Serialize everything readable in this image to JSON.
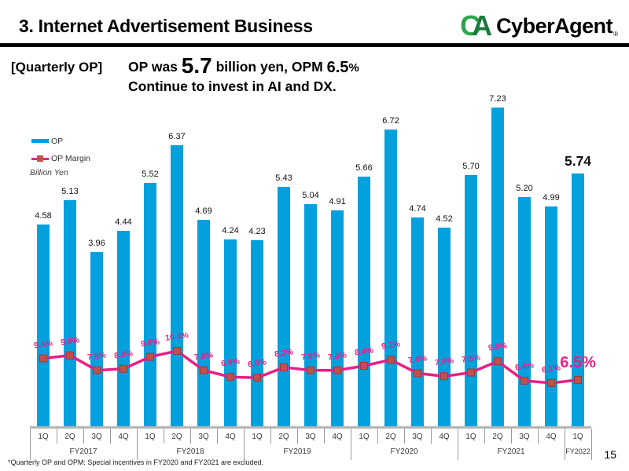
{
  "header": {
    "title": "3. Internet Advertisement Business",
    "logo": {
      "mark_c": "C",
      "mark_a": "A",
      "wordmark": "CyberAgent",
      "reg": "®",
      "green_light": "#2FA44E",
      "green_dark": "#1B7A3B"
    }
  },
  "subtitle": {
    "bracket": "[Quarterly OP]",
    "line1_pre": "OP was ",
    "line1_big": "5.7",
    "line1_mid": " billion yen, OPM ",
    "line1_opm": "6.5",
    "line1_pct": "%",
    "line2": "Continue to invest in AI and DX."
  },
  "chart": {
    "legend": {
      "op": "OP",
      "op_margin": "OP Margin"
    },
    "unit_label": "Billion Yen",
    "colors": {
      "bar": "#03A0DE",
      "line": "#EC1E87",
      "marker": "#C0504D",
      "marker_edge": "#9E3A36"
    }
  },
  "chart_data": {
    "type": "bar",
    "title": "Quarterly OP - Internet Advertisement Business",
    "ylabel": "Billion Yen",
    "legend_position": "top-left",
    "grid": false,
    "categories": [
      {
        "fy": "FY2017",
        "quarters": [
          "1Q",
          "2Q",
          "3Q",
          "4Q"
        ]
      },
      {
        "fy": "FY2018",
        "quarters": [
          "1Q",
          "2Q",
          "3Q",
          "4Q"
        ]
      },
      {
        "fy": "FY2019",
        "quarters": [
          "1Q",
          "2Q",
          "3Q",
          "4Q"
        ]
      },
      {
        "fy": "FY2020",
        "quarters": [
          "1Q",
          "2Q",
          "3Q",
          "4Q"
        ]
      },
      {
        "fy": "FY2021",
        "quarters": [
          "1Q",
          "2Q",
          "3Q",
          "4Q"
        ]
      },
      {
        "fy": "FY2022",
        "quarters": [
          "1Q"
        ]
      }
    ],
    "series": [
      {
        "name": "OP",
        "type": "bar",
        "unit": "billion yen",
        "values": [
          4.58,
          5.13,
          3.96,
          4.44,
          5.52,
          6.37,
          4.69,
          4.24,
          4.23,
          5.43,
          5.04,
          4.91,
          5.66,
          6.72,
          4.74,
          4.52,
          5.7,
          7.23,
          5.2,
          4.99,
          5.74
        ]
      },
      {
        "name": "OP Margin",
        "type": "line",
        "unit": "%",
        "values": [
          9.4,
          9.8,
          7.8,
          8.0,
          9.6,
          10.4,
          7.8,
          6.9,
          6.8,
          8.2,
          7.8,
          7.8,
          8.4,
          9.2,
          7.4,
          7.0,
          7.5,
          9.0,
          6.4,
          6.1,
          6.5
        ]
      }
    ],
    "bar_labels": [
      "4.58",
      "5.13",
      "3.96",
      "4.44",
      "5.52",
      "6.37",
      "4.69",
      "4.24",
      "4.23",
      "5.43",
      "5.04",
      "4.91",
      "5.66",
      "6.72",
      "4.74",
      "4.52",
      "5.70",
      "7.23",
      "5.20",
      "4.99",
      "5.74"
    ],
    "margin_labels": [
      "9.4%",
      "9.8%",
      "7.8%",
      "8.0%",
      "9.6%",
      "10.4%",
      "7.8%",
      "6.9%",
      "6.8%",
      "8.2%",
      "7.8%",
      "7.8%",
      "8.4%",
      "9.2%",
      "7.4%",
      "7.0%",
      "7.5%",
      "9.0%",
      "6.4%",
      "6.1%",
      "6.5%"
    ]
  },
  "footer": {
    "footnote": "*Quarterly OP and OPM: Special incentives in FY2020 and FY2021 are excluded.",
    "page_number": "15"
  }
}
